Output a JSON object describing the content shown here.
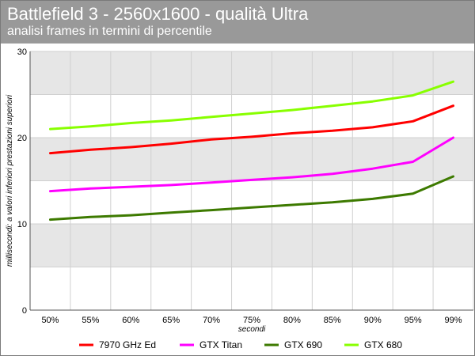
{
  "header": {
    "title": "Battlefield 3 - 2560x1600 - qualità Ultra",
    "subtitle": "analisi frames in termini di percentile"
  },
  "chart_data": {
    "type": "line",
    "title": "Battlefield 3 - 2560x1600 - qualità Ultra",
    "subtitle": "analisi frames in termini di percentile",
    "xlabel": "secondi",
    "ylabel": "millisecondi: a valori inferiori prestazioni superiori",
    "categories": [
      "50%",
      "55%",
      "60%",
      "65%",
      "70%",
      "75%",
      "80%",
      "85%",
      "90%",
      "95%",
      "99%"
    ],
    "ylim": [
      0,
      30
    ],
    "yticks": [
      0,
      10,
      20,
      30
    ],
    "grid": true,
    "legend_position": "bottom",
    "series": [
      {
        "name": "7970 GHz Ed",
        "color": "#ff0000",
        "values": [
          18.2,
          18.6,
          18.9,
          19.3,
          19.8,
          20.1,
          20.5,
          20.8,
          21.2,
          21.9,
          23.7
        ]
      },
      {
        "name": "GTX Titan",
        "color": "#ff00ff",
        "values": [
          13.8,
          14.1,
          14.3,
          14.5,
          14.8,
          15.1,
          15.4,
          15.8,
          16.4,
          17.2,
          20.0
        ]
      },
      {
        "name": "GTX 690",
        "color": "#3d7a00",
        "values": [
          10.5,
          10.8,
          11.0,
          11.3,
          11.6,
          11.9,
          12.2,
          12.5,
          12.9,
          13.5,
          15.5
        ]
      },
      {
        "name": "GTX 680",
        "color": "#88ff00",
        "values": [
          21.0,
          21.3,
          21.7,
          22.0,
          22.4,
          22.8,
          23.2,
          23.7,
          24.2,
          24.9,
          26.5
        ]
      }
    ]
  }
}
